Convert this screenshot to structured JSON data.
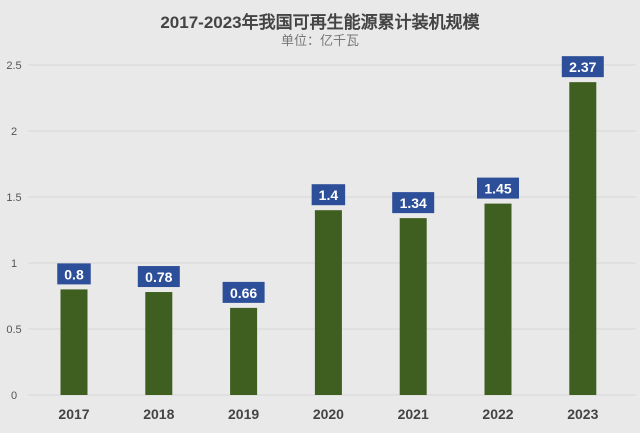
{
  "chart_data": {
    "type": "bar",
    "title": "2017-2023年我国可再生能源累计装机规模",
    "subtitle": "单位：亿千瓦",
    "categories": [
      "2017",
      "2018",
      "2019",
      "2020",
      "2021",
      "2022",
      "2023"
    ],
    "values": [
      0.8,
      0.78,
      0.66,
      1.4,
      1.34,
      1.45,
      2.37
    ],
    "ylim": [
      0,
      2.5
    ],
    "yticks": [
      0,
      0.5,
      1,
      1.5,
      2,
      2.5
    ],
    "grid": true,
    "legend": "none",
    "colors": {
      "bar": "#3e5f1f",
      "label_bg": "#2d4f99",
      "label_text": "#ffffff",
      "grid": "#d6d6d6",
      "background": "#e9e9e9"
    }
  }
}
